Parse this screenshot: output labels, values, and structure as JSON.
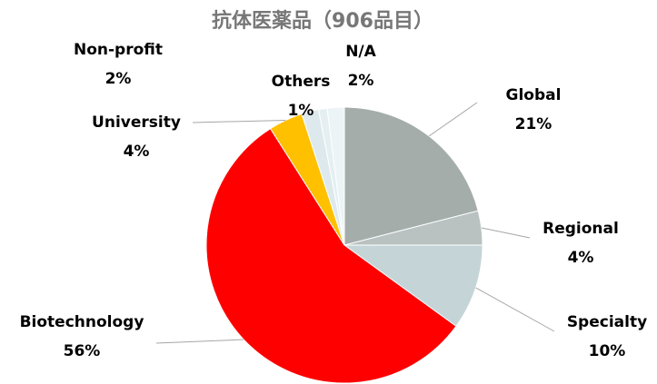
{
  "chart_data": {
    "type": "pie",
    "title": "抗体医薬品（906品目）",
    "categories": [
      "Global",
      "Regional",
      "Specialty",
      "Biotechnology",
      "University",
      "Non-profit",
      "Others",
      "N/A"
    ],
    "values": [
      21,
      4,
      10,
      56,
      4,
      2,
      1,
      2
    ],
    "value_labels": [
      "21%",
      "4%",
      "10%",
      "56%",
      "4%",
      "2%",
      "1%",
      "2%"
    ],
    "colors": [
      "#a5adab",
      "#b9c1c1",
      "#c5d4d7",
      "#ff0000",
      "#ffc000",
      "#dde9ec",
      "#e5eff2",
      "#ecf4f6"
    ]
  }
}
